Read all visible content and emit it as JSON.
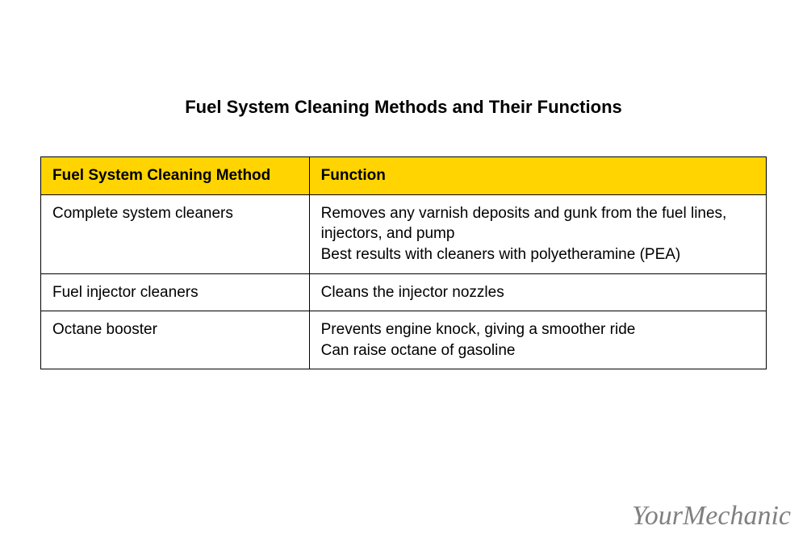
{
  "title": "Fuel System Cleaning Methods and Their Functions",
  "columns": {
    "method": "Fuel System Cleaning Method",
    "function": "Function"
  },
  "rows": [
    {
      "method": "Complete system cleaners",
      "fn_line1": "Removes any varnish deposits and gunk from the fuel lines, injectors, and pump",
      "fn_line2": "Best results with cleaners with polyetheramine (PEA)"
    },
    {
      "method": "Fuel injector cleaners",
      "fn_line1": "Cleans the injector nozzles",
      "fn_line2": ""
    },
    {
      "method": "Octane booster",
      "fn_line1": "Prevents engine knock, giving a smoother ride",
      "fn_line2": "Can raise octane of gasoline"
    }
  ],
  "watermark": "YourMechanic",
  "styling": {
    "header_bg": "#ffd400",
    "border_color": "#000000",
    "title_fontsize": 22,
    "cell_fontsize": 19,
    "col_widths": [
      "37%",
      "63%"
    ],
    "background": "#ffffff",
    "watermark_color": "#808080",
    "watermark_fontsize": 34
  }
}
